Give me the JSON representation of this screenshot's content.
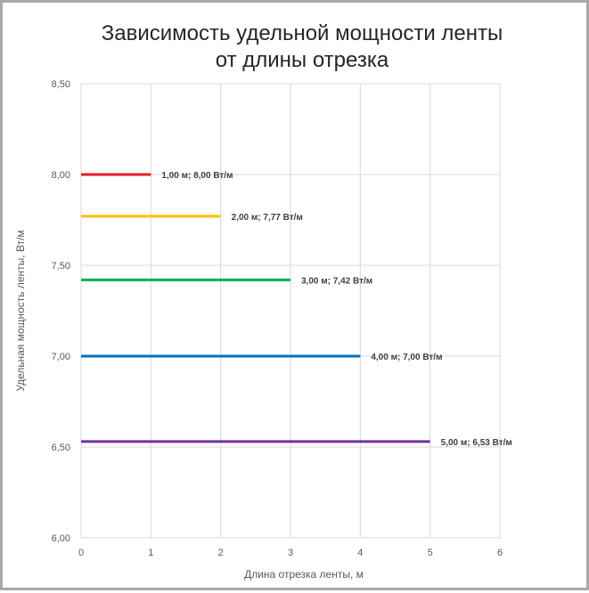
{
  "chart_data": {
    "type": "line",
    "title": [
      "Зависимость удельной мощности ленты",
      "от длины отрезка"
    ],
    "xlabel": "Длина отрезка ленты, м",
    "ylabel": "Удельная мощность ленты, Вт/м",
    "xlim": [
      0,
      6
    ],
    "ylim": [
      6.0,
      8.5
    ],
    "x_ticks": [
      "0",
      "1",
      "2",
      "3",
      "4",
      "5",
      "6"
    ],
    "y_ticks": [
      "6,00",
      "6,50",
      "7,00",
      "7,50",
      "8,00",
      "8,50"
    ],
    "grid": true,
    "legend": "none",
    "series": [
      {
        "color": "#e31e24",
        "x": [
          0,
          1
        ],
        "y": [
          8.0,
          8.0
        ],
        "label": "1,00 м; 8,00 Вт/м"
      },
      {
        "color": "#ffc000",
        "x": [
          0,
          2
        ],
        "y": [
          7.77,
          7.77
        ],
        "label": "2,00 м; 7,77 Вт/м"
      },
      {
        "color": "#00b050",
        "x": [
          0,
          3
        ],
        "y": [
          7.42,
          7.42
        ],
        "label": "3,00 м; 7,42 Вт/м"
      },
      {
        "color": "#0070c0",
        "x": [
          0,
          4
        ],
        "y": [
          7.0,
          7.0
        ],
        "label": "4,00 м; 7,00 Вт/м"
      },
      {
        "color": "#7030a0",
        "x": [
          0,
          5
        ],
        "y": [
          6.53,
          6.53
        ],
        "label": "5,00 м; 6,53 Вт/м"
      }
    ]
  }
}
